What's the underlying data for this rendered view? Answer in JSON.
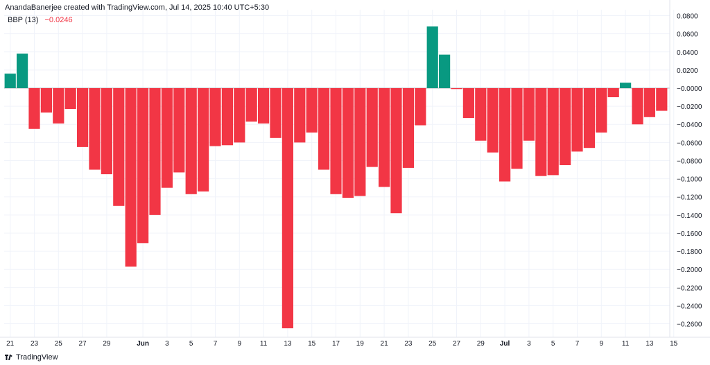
{
  "header": {
    "credit": "AnandaBanerjee created with TradingView.com, Jul 14, 2025 10:40 UTC+5:30"
  },
  "legend": {
    "name": "BBP (13)",
    "value": "−0.0246"
  },
  "footer": {
    "brand": "TradingView"
  },
  "colors": {
    "positive": "#089981",
    "negative": "#f23645",
    "grid": "#f0f3fa",
    "text": "#131722"
  },
  "chart_data": {
    "type": "bar",
    "title": "BBP (13)",
    "ylim": [
      -0.27,
      0.08
    ],
    "y_ticks": [
      0.08,
      0.06,
      0.04,
      0.02,
      0.0,
      -0.02,
      -0.04,
      -0.06,
      -0.08,
      -0.1,
      -0.12,
      -0.14,
      -0.16,
      -0.18,
      -0.2,
      -0.22,
      -0.24,
      -0.26
    ],
    "y_tick_labels": [
      "0.0800",
      "0.0600",
      "0.0400",
      "0.0200",
      "−0.0000",
      "−0.0200",
      "−0.0400",
      "−0.0600",
      "−0.0800",
      "−0.1000",
      "−0.1200",
      "−0.1400",
      "−0.1600",
      "−0.1800",
      "−0.2000",
      "−0.2200",
      "−0.2400",
      "−0.2600"
    ],
    "x_ticks": [
      {
        "index": 0,
        "label": "21"
      },
      {
        "index": 2,
        "label": "23"
      },
      {
        "index": 4,
        "label": "25"
      },
      {
        "index": 6,
        "label": "27"
      },
      {
        "index": 8,
        "label": "29"
      },
      {
        "index": 11,
        "label": "Jun"
      },
      {
        "index": 13,
        "label": "3"
      },
      {
        "index": 15,
        "label": "5"
      },
      {
        "index": 17,
        "label": "7"
      },
      {
        "index": 19,
        "label": "9"
      },
      {
        "index": 21,
        "label": "11"
      },
      {
        "index": 23,
        "label": "13"
      },
      {
        "index": 25,
        "label": "15"
      },
      {
        "index": 27,
        "label": "17"
      },
      {
        "index": 29,
        "label": "19"
      },
      {
        "index": 31,
        "label": "21"
      },
      {
        "index": 33,
        "label": "23"
      },
      {
        "index": 35,
        "label": "25"
      },
      {
        "index": 37,
        "label": "27"
      },
      {
        "index": 39,
        "label": "29"
      },
      {
        "index": 41,
        "label": "Jul"
      },
      {
        "index": 43,
        "label": "3"
      },
      {
        "index": 45,
        "label": "5"
      },
      {
        "index": 47,
        "label": "7"
      },
      {
        "index": 49,
        "label": "9"
      },
      {
        "index": 51,
        "label": "11"
      },
      {
        "index": 53,
        "label": "13"
      },
      {
        "index": 55,
        "label": "15"
      }
    ],
    "x_tick_bold": [
      "Jun",
      "Jul"
    ],
    "values": [
      0.016,
      0.038,
      -0.045,
      -0.027,
      -0.039,
      -0.023,
      -0.065,
      -0.09,
      -0.095,
      -0.13,
      -0.197,
      -0.171,
      -0.14,
      -0.11,
      -0.093,
      -0.117,
      -0.114,
      -0.064,
      -0.063,
      -0.06,
      -0.037,
      -0.039,
      -0.055,
      -0.265,
      -0.06,
      -0.049,
      -0.09,
      -0.117,
      -0.121,
      -0.119,
      -0.087,
      -0.109,
      -0.138,
      -0.088,
      -0.041,
      0.068,
      0.037,
      -0.001,
      -0.033,
      -0.058,
      -0.071,
      -0.103,
      -0.089,
      -0.058,
      -0.097,
      -0.096,
      -0.085,
      -0.07,
      -0.066,
      -0.049,
      -0.01,
      0.006,
      -0.04,
      -0.032,
      -0.025
    ]
  }
}
